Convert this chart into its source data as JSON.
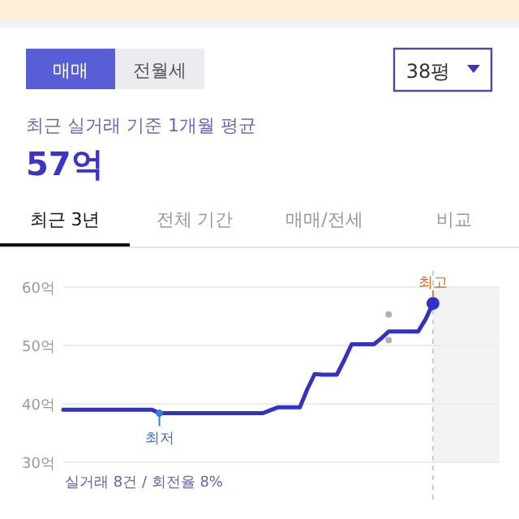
{
  "chart_data": {
    "type": "line",
    "title": "최근 실거래 기준 1개월 평균",
    "subtitle": "57억",
    "categories": [
      null,
      null,
      null,
      null,
      null,
      null,
      null,
      null,
      null,
      null,
      null,
      null,
      null,
      null,
      null,
      null,
      null,
      null,
      null,
      null,
      null,
      null,
      null,
      null,
      null,
      null,
      null,
      null,
      null,
      null,
      null,
      null,
      null,
      null,
      null,
      null,
      null,
      null,
      null,
      null,
      null,
      null,
      null,
      null,
      null,
      null,
      null,
      null,
      null,
      null,
      null,
      null,
      null,
      null,
      null,
      null,
      null,
      null,
      null,
      null
    ],
    "series": [
      {
        "color": "#3531c4",
        "values": [
          39.0,
          39.0,
          39.0,
          39.0,
          39.0,
          39.0,
          39.0,
          39.0,
          39.0,
          39.0,
          39.0,
          39.0,
          39.0,
          38.4,
          38.4,
          38.4,
          38.4,
          38.4,
          38.4,
          38.4,
          38.4,
          38.4,
          38.4,
          38.4,
          38.4,
          38.4,
          38.4,
          38.4,
          38.9,
          39.4,
          39.4,
          39.4,
          39.4,
          42.5,
          45.1,
          45.0,
          45.0,
          45.0,
          47.5,
          50.2,
          50.2,
          50.2,
          50.2,
          51.2,
          52.4,
          52.4,
          52.4,
          52.4,
          52.4,
          54.5,
          57.2,
          null,
          null,
          null,
          null,
          null,
          null,
          null,
          null,
          null
        ]
      },
      {
        "type": "scatter",
        "color": "#b0b0b0",
        "values": [
          null,
          null,
          null,
          null,
          null,
          null,
          null,
          null,
          null,
          null,
          null,
          null,
          null,
          null,
          null,
          null,
          null,
          null,
          null,
          null,
          null,
          null,
          null,
          null,
          null,
          null,
          null,
          null,
          null,
          null,
          null,
          null,
          null,
          null,
          null,
          null,
          null,
          null,
          null,
          null,
          null,
          null,
          null,
          null,
          55.3,
          null,
          null,
          null,
          null,
          null,
          null,
          null,
          null,
          null,
          null,
          null,
          null,
          null,
          null,
          null
        ]
      },
      {
        "type": "scatter",
        "color": "#b0b0b0",
        "values": [
          null,
          null,
          null,
          null,
          null,
          null,
          null,
          null,
          null,
          null,
          null,
          null,
          null,
          null,
          null,
          null,
          null,
          null,
          null,
          null,
          null,
          null,
          null,
          null,
          null,
          null,
          null,
          null,
          null,
          null,
          null,
          null,
          null,
          null,
          null,
          null,
          null,
          null,
          null,
          null,
          null,
          null,
          null,
          null,
          50.9,
          null,
          null,
          null,
          null,
          null,
          null,
          null,
          null,
          null,
          null,
          null,
          null,
          null,
          null,
          null
        ]
      }
    ],
    "ylim": [
      30,
      60
    ],
    "yticks": [
      {
        "value": 30,
        "label": "30억"
      },
      {
        "value": 40,
        "label": "40억"
      },
      {
        "value": 50,
        "label": "50억"
      },
      {
        "value": 60,
        "label": "60억"
      }
    ],
    "grid": "y",
    "line_style": "solid",
    "annotations": [
      "매매",
      "전월세",
      "38평",
      "최근 3년",
      "전체 기간",
      "매매/전세",
      "비교",
      "실거래 8건 / 회전율 8%",
      {
        "text": "최저",
        "y": 38.4
      },
      {
        "text": "최고",
        "y": 57.2
      }
    ]
  }
}
